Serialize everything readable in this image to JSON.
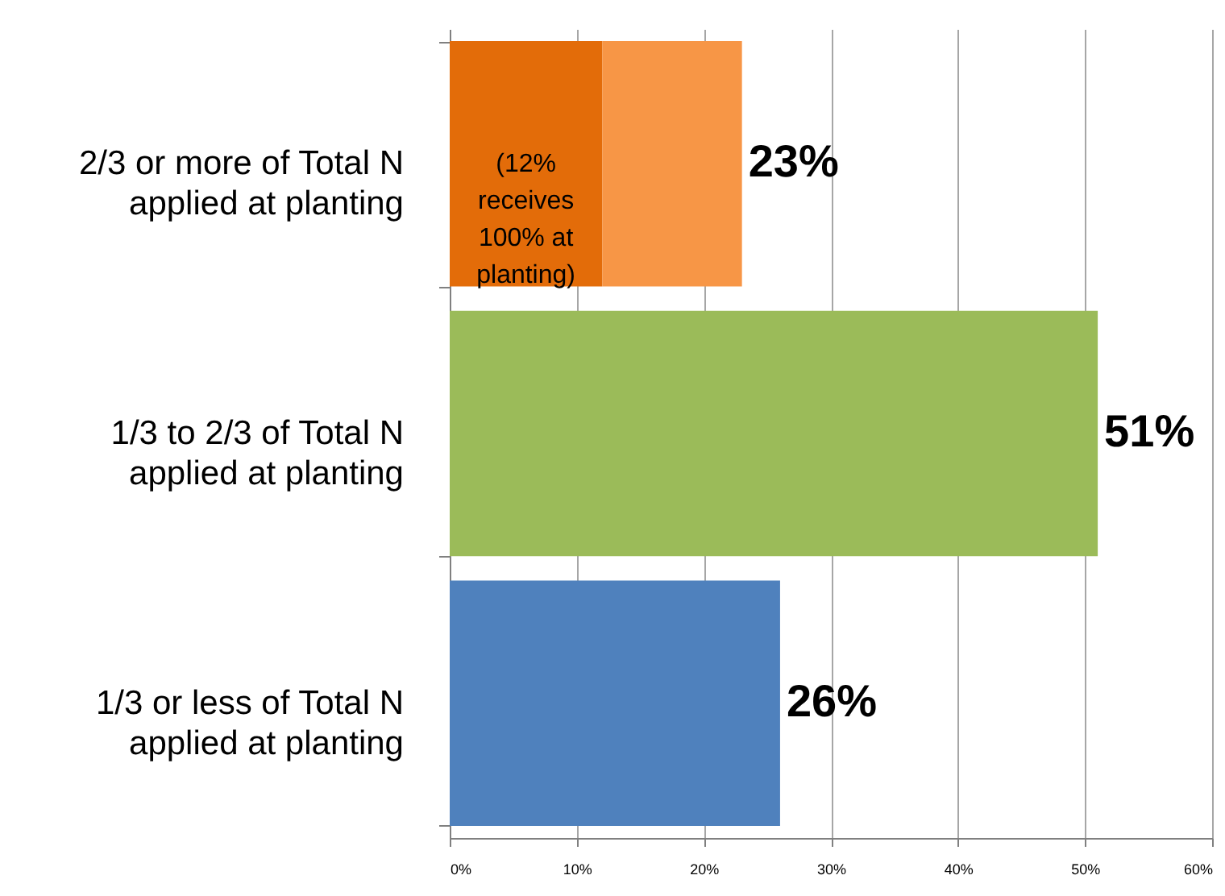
{
  "chart_data": {
    "type": "bar",
    "orientation": "horizontal",
    "stacked": true,
    "categories": [
      "2/3 or more of Total N applied at planting",
      "1/3 to 2/3 of Total N applied at planting",
      "1/3 or less of Total N applied at planting"
    ],
    "series": [
      {
        "colors": [
          "#e36c09",
          "#9bbb59",
          "#4f81bd"
        ],
        "values": [
          12,
          51,
          26
        ]
      },
      {
        "color": "#f79646",
        "values": [
          11,
          null,
          null
        ]
      }
    ],
    "totals": [
      "23%",
      "51%",
      "26%"
    ],
    "annotations": [
      "(12% receives 100% at planting)"
    ],
    "xlim": [
      0,
      60
    ],
    "xticks": [
      {
        "value": 0,
        "label": "0%"
      },
      {
        "value": 10,
        "label": "10%"
      },
      {
        "value": 20,
        "label": "20%"
      },
      {
        "value": 30,
        "label": "30%"
      },
      {
        "value": 40,
        "label": "40%"
      },
      {
        "value": 50,
        "label": "50%"
      },
      {
        "value": 60,
        "label": "60%"
      }
    ],
    "grid": "x"
  }
}
